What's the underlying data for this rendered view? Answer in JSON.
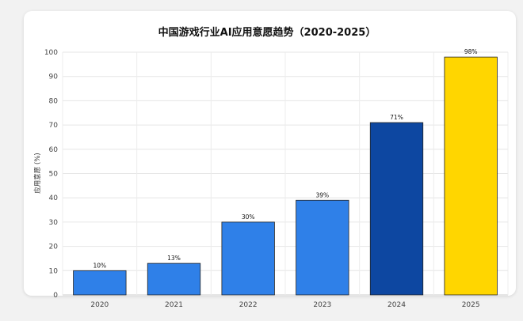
{
  "chart_data": {
    "type": "bar",
    "title": "中国游戏行业AI应用意愿趋势（2020-2025）",
    "xlabel": "",
    "ylabel": "应用意愿 (%)",
    "categories": [
      "2020",
      "2021",
      "2022",
      "2023",
      "2024",
      "2025"
    ],
    "values": [
      10,
      13,
      30,
      39,
      71,
      98
    ],
    "data_labels": [
      "10%",
      "13%",
      "30%",
      "39%",
      "71%",
      "98%"
    ],
    "colors": [
      "#2f80e8",
      "#2f80e8",
      "#2f80e8",
      "#2f80e8",
      "#0d47a1",
      "#ffd600"
    ],
    "ylim": [
      0,
      100
    ],
    "yticks": [
      "0",
      "10",
      "20",
      "30",
      "40",
      "50",
      "60",
      "70",
      "80",
      "90",
      "100"
    ],
    "grid": true,
    "legend": "none"
  }
}
